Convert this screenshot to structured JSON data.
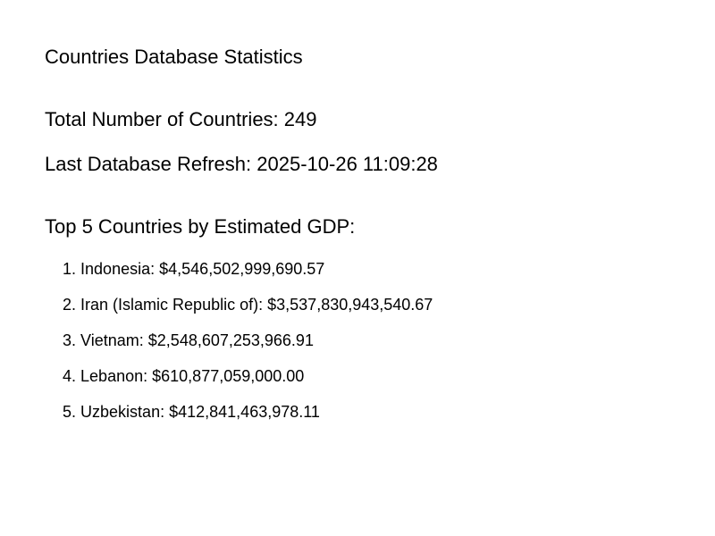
{
  "page": {
    "title": "Countries Database Statistics"
  },
  "stats": {
    "total_countries_label": "Total Number of Countries:",
    "total_countries_value": "249",
    "last_refresh_label": "Last Database Refresh:",
    "last_refresh_value": "2025-10-26 11:09:28"
  },
  "top_gdp": {
    "heading": "Top 5 Countries by Estimated GDP:",
    "items": [
      {
        "rank": "1.",
        "country": "Indonesia",
        "gdp": "$4,546,502,999,690.57"
      },
      {
        "rank": "2.",
        "country": "Iran (Islamic Republic of)",
        "gdp": "$3,537,830,943,540.67"
      },
      {
        "rank": "3.",
        "country": "Vietnam",
        "gdp": "$2,548,607,253,966.91"
      },
      {
        "rank": "4.",
        "country": "Lebanon",
        "gdp": "$610,877,059,000.00"
      },
      {
        "rank": "5.",
        "country": "Uzbekistan",
        "gdp": "$412,841,463,978.11"
      }
    ]
  },
  "colors": {
    "text": "#000000",
    "background": "#ffffff"
  }
}
